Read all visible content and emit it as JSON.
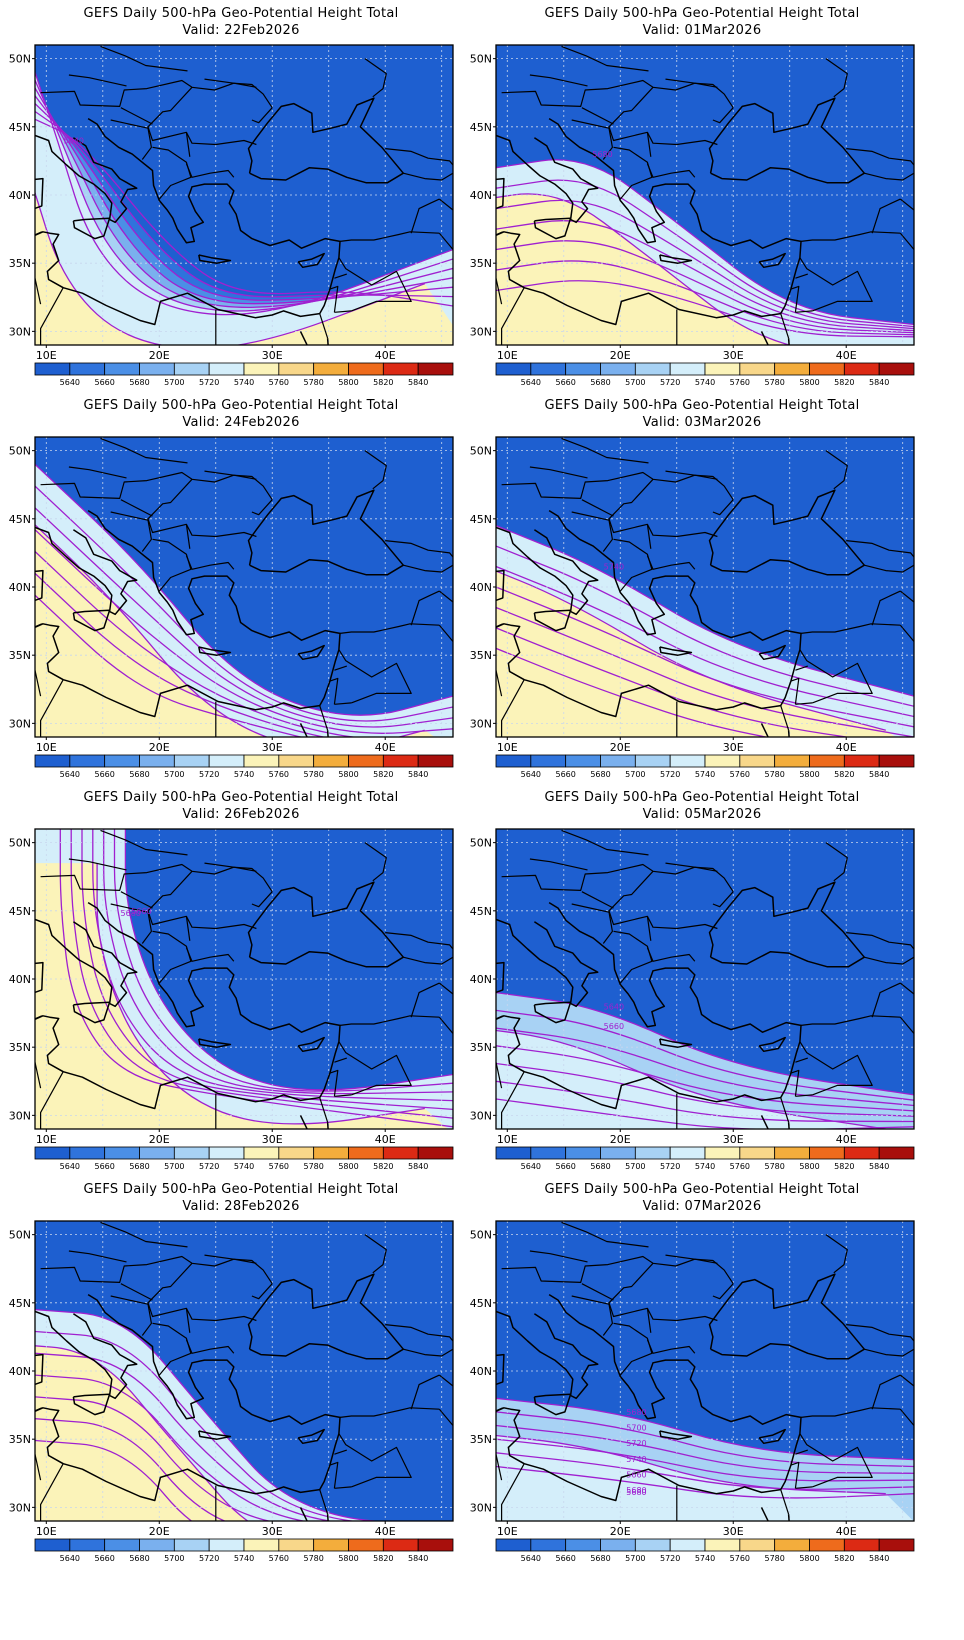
{
  "panels": [
    {
      "title": "GEFS Daily 500-hPa Geo-Potential Height Total",
      "valid": "Valid: 22Feb2026",
      "contour_labels": [
        "5640"
      ],
      "pattern": "trough_west"
    },
    {
      "title": "GEFS Daily 500-hPa Geo-Potential Height Total",
      "valid": "Valid: 01Mar2026",
      "contour_labels": [
        "5680"
      ],
      "pattern": "band_south"
    },
    {
      "title": "GEFS Daily 500-hPa Geo-Potential Height Total",
      "valid": "Valid: 24Feb2026",
      "contour_labels": [],
      "pattern": "diagonal"
    },
    {
      "title": "GEFS Daily 500-hPa Geo-Potential Height Total",
      "valid": "Valid: 03Mar2026",
      "contour_labels": [
        "5740"
      ],
      "pattern": "band_south2"
    },
    {
      "title": "GEFS Daily 500-hPa Geo-Potential Height Total",
      "valid": "Valid: 26Feb2026",
      "contour_labels": [
        "5660",
        "5680"
      ],
      "pattern": "ridge_west"
    },
    {
      "title": "GEFS Daily 500-hPa Geo-Potential Height Total",
      "valid": "Valid: 05Mar2026",
      "contour_labels": [
        "5640",
        "5660"
      ],
      "pattern": "band_low"
    },
    {
      "title": "GEFS Daily 500-hPa Geo-Potential Height Total",
      "valid": "Valid: 28Feb2026",
      "contour_labels": [],
      "pattern": "diagonal2"
    },
    {
      "title": "GEFS Daily 500-hPa Geo-Potential Height Total",
      "valid": "Valid: 07Mar2026",
      "contour_labels": [
        "5680",
        "5700",
        "5720",
        "5740",
        "5660",
        "5680",
        "5680"
      ],
      "pattern": "band_lowest"
    }
  ],
  "lat_labels": [
    "50N",
    "45N",
    "40N",
    "35N",
    "30N"
  ],
  "lon_labels": [
    "10E",
    "20E",
    "30E",
    "40E"
  ],
  "colorbar": {
    "labels": [
      "5640",
      "5660",
      "5680",
      "5700",
      "5720",
      "5740",
      "5760",
      "5780",
      "5800",
      "5820",
      "5840"
    ],
    "colors": [
      "#1e5fd0",
      "#2f73dc",
      "#4b8fe6",
      "#7ab0ee",
      "#a8d2f4",
      "#d4eefa",
      "#fbf3b9",
      "#f8d78a",
      "#f3ad3c",
      "#ee6b1c",
      "#dc2a14",
      "#a80f0c"
    ]
  },
  "contour_color": "#a020d0"
}
